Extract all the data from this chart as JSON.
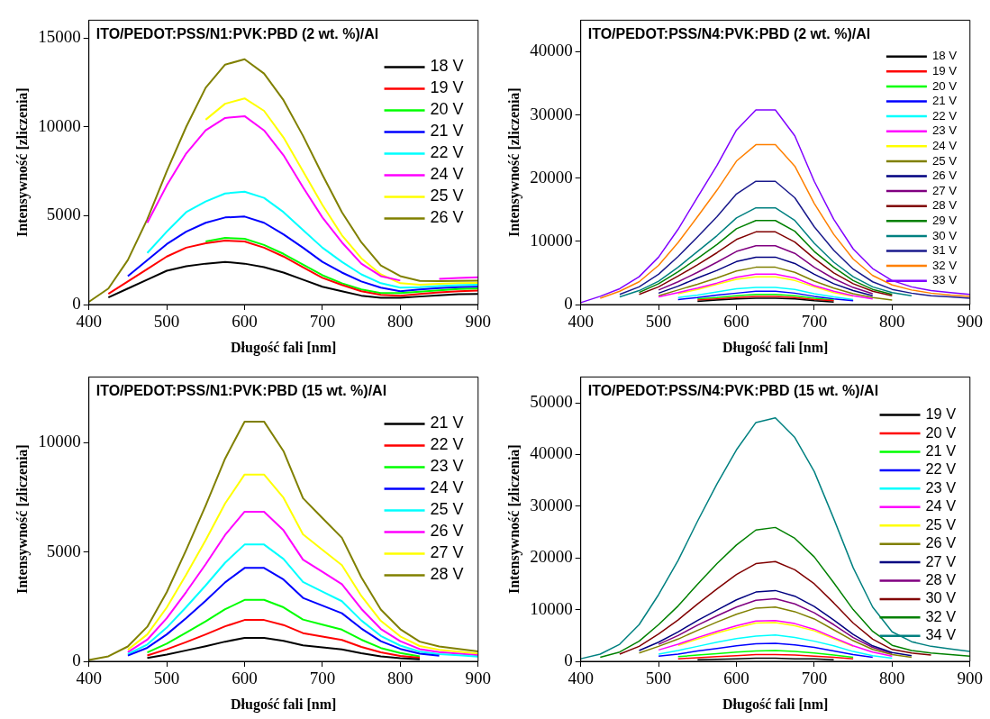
{
  "chart_data": [
    {
      "type": "line",
      "title": "ITO/PEDOT:PSS/N1:PVK:PBD (2 wt. %)/Al",
      "xlabel": "Długość fali [nm]",
      "ylabel": "Intensywność [zliczenia]",
      "xlim": [
        400,
        900
      ],
      "xticks": [
        400,
        500,
        600,
        700,
        800,
        900
      ],
      "ylim": [
        0,
        16000
      ],
      "yticks": [
        0,
        5000,
        10000,
        15000
      ],
      "grid": false,
      "legend": "top right",
      "marker": "none",
      "line_style": "solid",
      "x": [
        400,
        425,
        450,
        475,
        500,
        525,
        550,
        575,
        600,
        625,
        650,
        675,
        700,
        725,
        750,
        775,
        800,
        825,
        850,
        875,
        900
      ],
      "series": [
        {
          "name": "18 V",
          "color": "#000000",
          "values": [
            null,
            400,
            900,
            1400,
            1900,
            2150,
            2300,
            2400,
            2300,
            2100,
            1800,
            1400,
            1000,
            750,
            500,
            380,
            380,
            450,
            520,
            580,
            600
          ]
        },
        {
          "name": "19 V",
          "color": "#ff0000",
          "values": [
            null,
            600,
            1300,
            2000,
            2700,
            3200,
            3450,
            3600,
            3550,
            3200,
            2700,
            2100,
            1500,
            1100,
            750,
            550,
            500,
            600,
            680,
            750,
            780
          ]
        },
        {
          "name": "20 V",
          "color": "#00ff00",
          "values": [
            null,
            null,
            null,
            null,
            null,
            null,
            3550,
            3750,
            3700,
            3350,
            2850,
            2250,
            1650,
            1200,
            850,
            650,
            650,
            720,
            800,
            870,
            900
          ]
        },
        {
          "name": "21 V",
          "color": "#0000ff",
          "values": [
            null,
            null,
            1600,
            2500,
            3400,
            4100,
            4600,
            4900,
            4950,
            4600,
            3950,
            3200,
            2400,
            1800,
            1300,
            950,
            750,
            850,
            920,
            980,
            1000
          ]
        },
        {
          "name": "22 V",
          "color": "#00ffff",
          "values": [
            null,
            null,
            null,
            2900,
            4100,
            5200,
            5800,
            6250,
            6350,
            6000,
            5200,
            4200,
            3200,
            2400,
            1700,
            1200,
            950,
            980,
            1040,
            1090,
            1120
          ]
        },
        {
          "name": "24 V",
          "color": "#ff00ff",
          "values": [
            null,
            null,
            null,
            4600,
            6700,
            8500,
            9800,
            10500,
            10600,
            9800,
            8400,
            6600,
            4900,
            3500,
            2300,
            1600,
            1350,
            null,
            1450,
            1500,
            1530
          ]
        },
        {
          "name": "25 V",
          "color": "#ffff00",
          "values": [
            null,
            null,
            null,
            null,
            null,
            null,
            10400,
            11300,
            11600,
            10900,
            9400,
            7500,
            5600,
            3900,
            2600,
            1700,
            1200,
            1120,
            1160,
            1200,
            1220
          ]
        },
        {
          "name": "26 V",
          "color": "#808000",
          "values": [
            150,
            900,
            2500,
            4800,
            7500,
            10000,
            12200,
            13500,
            13800,
            13000,
            11500,
            9500,
            7300,
            5200,
            3500,
            2200,
            1600,
            1330,
            1320,
            1330,
            1340
          ]
        }
      ]
    },
    {
      "type": "line",
      "title": "ITO/PEDOT:PSS/N4:PVK:PBD (2 wt. %)/Al",
      "xlabel": "Długość fali [nm]",
      "ylabel": "Intensywność [zliczenia]",
      "xlim": [
        400,
        900
      ],
      "xticks": [
        400,
        500,
        600,
        700,
        800,
        900
      ],
      "ylim": [
        0,
        45000
      ],
      "yticks": [
        0,
        10000,
        20000,
        30000,
        40000
      ],
      "grid": false,
      "legend": "right",
      "marker": "none",
      "line_style": "solid",
      "x": [
        400,
        425,
        450,
        475,
        500,
        525,
        550,
        575,
        600,
        625,
        650,
        675,
        700,
        725,
        750,
        775,
        800,
        825,
        850,
        875,
        900
      ],
      "series": [
        {
          "name": "18 V",
          "color": "#000000",
          "values": [
            null,
            null,
            null,
            null,
            null,
            null,
            500,
            700,
            900,
            1000,
            1000,
            900,
            600,
            400,
            null,
            null,
            null,
            null,
            null,
            null,
            null
          ]
        },
        {
          "name": "19 V",
          "color": "#ff0000",
          "values": [
            null,
            null,
            null,
            null,
            null,
            null,
            700,
            900,
            1100,
            1300,
            1300,
            1100,
            800,
            600,
            null,
            null,
            null,
            null,
            null,
            null,
            null
          ]
        },
        {
          "name": "20 V",
          "color": "#00ff00",
          "values": [
            null,
            null,
            null,
            null,
            null,
            null,
            900,
            1100,
            1400,
            1600,
            1600,
            1400,
            1000,
            700,
            null,
            null,
            null,
            null,
            null,
            null,
            null
          ]
        },
        {
          "name": "21 V",
          "color": "#0000ff",
          "values": [
            null,
            null,
            null,
            null,
            null,
            800,
            1100,
            1500,
            1800,
            2100,
            2100,
            1800,
            1300,
            900,
            600,
            null,
            null,
            null,
            null,
            null,
            null
          ]
        },
        {
          "name": "22 V",
          "color": "#00ffff",
          "values": [
            null,
            null,
            null,
            null,
            null,
            1100,
            1500,
            2000,
            2500,
            2700,
            2700,
            2400,
            1700,
            1200,
            800,
            null,
            null,
            null,
            null,
            null,
            null
          ]
        },
        {
          "name": "23 V",
          "color": "#ff00ff",
          "values": [
            null,
            null,
            null,
            null,
            1200,
            1900,
            2600,
            3400,
            4300,
            4800,
            4800,
            4200,
            3000,
            2100,
            1400,
            900,
            null,
            null,
            null,
            null,
            null
          ]
        },
        {
          "name": "24 V",
          "color": "#ffff00",
          "values": [
            null,
            null,
            null,
            null,
            null,
            1700,
            2400,
            3200,
            4000,
            4400,
            4400,
            3800,
            2800,
            1900,
            1300,
            null,
            null,
            null,
            null,
            null,
            null
          ]
        },
        {
          "name": "25 V",
          "color": "#808000",
          "values": [
            null,
            null,
            null,
            null,
            1400,
            2300,
            3200,
            4200,
            5300,
            5900,
            5900,
            5100,
            3700,
            2600,
            1700,
            1100,
            700,
            null,
            null,
            null,
            null
          ]
        },
        {
          "name": "26 V",
          "color": "#000080",
          "values": [
            null,
            null,
            null,
            null,
            1800,
            2900,
            4200,
            5400,
            6800,
            7500,
            7500,
            6500,
            4800,
            3300,
            2200,
            1400,
            null,
            null,
            null,
            null,
            null
          ]
        },
        {
          "name": "27 V",
          "color": "#800080",
          "values": [
            null,
            null,
            null,
            null,
            2300,
            3600,
            5100,
            6700,
            8400,
            9300,
            9300,
            8100,
            5900,
            4100,
            2700,
            1700,
            null,
            null,
            null,
            null,
            null
          ]
        },
        {
          "name": "28 V",
          "color": "#800000",
          "values": [
            null,
            null,
            null,
            1600,
            2800,
            4500,
            6300,
            8200,
            10300,
            11500,
            11500,
            9900,
            7300,
            5000,
            3300,
            2100,
            1400,
            null,
            null,
            null,
            null
          ]
        },
        {
          "name": "29 V",
          "color": "#008000",
          "values": [
            null,
            null,
            null,
            1900,
            3300,
            5200,
            7300,
            9500,
            12000,
            13300,
            13300,
            11600,
            8400,
            5900,
            3800,
            2400,
            1600,
            null,
            null,
            null,
            null
          ]
        },
        {
          "name": "30 V",
          "color": "#008080",
          "values": [
            null,
            null,
            1200,
            2200,
            3700,
            5900,
            8400,
            10900,
            13700,
            15300,
            15300,
            13300,
            9700,
            6700,
            4400,
            2800,
            1900,
            1400,
            null,
            null,
            null
          ]
        },
        {
          "name": "31 V",
          "color": "#1a1a8c",
          "values": [
            null,
            null,
            1600,
            2800,
            4800,
            7600,
            10700,
            13900,
            17500,
            19500,
            19500,
            16900,
            12300,
            8600,
            5600,
            3600,
            2400,
            1800,
            1400,
            1200,
            1000
          ]
        },
        {
          "name": "32 V",
          "color": "#ff8000",
          "values": [
            null,
            1000,
            2100,
            3600,
            6200,
            9800,
            13900,
            18100,
            22700,
            25300,
            25300,
            21900,
            16000,
            11100,
            7200,
            4600,
            3100,
            2300,
            1800,
            1500,
            1300
          ]
        },
        {
          "name": "33 V",
          "color": "#8000ff",
          "values": [
            300,
            1300,
            2500,
            4400,
            7500,
            11900,
            17000,
            22000,
            27600,
            30800,
            30800,
            26700,
            19500,
            13500,
            8800,
            5700,
            3800,
            2800,
            2200,
            1900,
            1600
          ]
        }
      ]
    },
    {
      "type": "line",
      "title": "ITO/PEDOT:PSS/N1:PVK:PBD (15 wt. %)/Al",
      "xlabel": "Długość fali [nm]",
      "ylabel": "Intensywność [zliczenia]",
      "xlim": [
        400,
        900
      ],
      "xticks": [
        400,
        500,
        600,
        700,
        800,
        900
      ],
      "ylim": [
        0,
        13000
      ],
      "yticks": [
        0,
        5000,
        10000
      ],
      "grid": false,
      "legend": "top right",
      "marker": "none",
      "line_style": "solid",
      "x": [
        400,
        425,
        450,
        475,
        500,
        525,
        550,
        575,
        600,
        625,
        650,
        675,
        700,
        725,
        750,
        775,
        800,
        825,
        850,
        875,
        900
      ],
      "series": [
        {
          "name": "21 V",
          "color": "#000000",
          "values": [
            null,
            null,
            null,
            150,
            310,
            500,
            690,
            900,
            1070,
            1070,
            940,
            730,
            640,
            550,
            370,
            230,
            140,
            90,
            null,
            null,
            null
          ]
        },
        {
          "name": "22 V",
          "color": "#ff0000",
          "values": [
            null,
            null,
            null,
            270,
            550,
            880,
            1230,
            1600,
            1890,
            1890,
            1660,
            1290,
            1130,
            980,
            660,
            410,
            250,
            160,
            null,
            null,
            null
          ]
        },
        {
          "name": "23 V",
          "color": "#00ff00",
          "values": [
            null,
            null,
            null,
            410,
            810,
            1310,
            1830,
            2380,
            2810,
            2810,
            2470,
            1910,
            1680,
            1450,
            990,
            610,
            380,
            230,
            null,
            null,
            null
          ]
        },
        {
          "name": "24 V",
          "color": "#0000ff",
          "values": [
            null,
            null,
            260,
            620,
            1230,
            1980,
            2770,
            3610,
            4270,
            4270,
            3740,
            2900,
            2550,
            2200,
            1500,
            920,
            570,
            350,
            260,
            null,
            null
          ]
        },
        {
          "name": "25 V",
          "color": "#00ffff",
          "values": [
            null,
            null,
            330,
            770,
            1540,
            2480,
            3470,
            4510,
            5340,
            5340,
            4680,
            3630,
            3190,
            2750,
            1870,
            1160,
            720,
            440,
            330,
            280,
            220
          ]
        },
        {
          "name": "26 V",
          "color": "#ff00ff",
          "values": [
            null,
            null,
            420,
            990,
            1970,
            3170,
            4440,
            5780,
            6840,
            6840,
            5990,
            4650,
            4090,
            3530,
            2400,
            1480,
            920,
            560,
            420,
            350,
            280
          ]
        },
        {
          "name": "27 V",
          "color": "#ffff00",
          "values": [
            null,
            null,
            530,
            1230,
            2460,
            3960,
            5540,
            7220,
            8540,
            8540,
            7480,
            5810,
            5100,
            4400,
            2990,
            1850,
            1140,
            700,
            530,
            440,
            350
          ]
        },
        {
          "name": "28 V",
          "color": "#808000",
          "values": [
            60,
            230,
            680,
            1580,
            3160,
            5090,
            7120,
            9270,
            10960,
            10960,
            9610,
            7460,
            6550,
            5650,
            3840,
            2370,
            1470,
            900,
            680,
            570,
            450
          ]
        }
      ]
    },
    {
      "type": "line",
      "title": "ITO/PEDOT:PSS/N4:PVK:PBD (15 wt. %)/Al",
      "xlabel": "Długość fali [nm]",
      "ylabel": "Intensywność [zliczenia]",
      "xlim": [
        400,
        900
      ],
      "xticks": [
        400,
        500,
        600,
        700,
        800,
        900
      ],
      "ylim": [
        0,
        55000
      ],
      "yticks": [
        0,
        10000,
        20000,
        30000,
        40000,
        50000
      ],
      "grid": false,
      "legend": "right",
      "marker": "none",
      "line_style": "solid",
      "x": [
        400,
        425,
        450,
        475,
        500,
        525,
        550,
        575,
        600,
        625,
        650,
        675,
        700,
        725,
        750,
        775,
        800,
        825,
        850,
        875,
        900
      ],
      "series": [
        {
          "name": "19 V",
          "color": "#000000",
          "values": [
            null,
            null,
            null,
            null,
            null,
            null,
            300,
            400,
            500,
            600,
            600,
            500,
            500,
            300,
            null,
            null,
            null,
            null,
            null,
            null,
            null
          ]
        },
        {
          "name": "20 V",
          "color": "#ff0000",
          "values": [
            null,
            null,
            null,
            null,
            null,
            500,
            700,
            900,
            1100,
            1300,
            1300,
            1200,
            1000,
            800,
            500,
            null,
            null,
            null,
            null,
            null,
            null
          ]
        },
        {
          "name": "21 V",
          "color": "#00ff00",
          "values": [
            null,
            null,
            null,
            null,
            null,
            900,
            1200,
            1500,
            1800,
            2000,
            2100,
            1900,
            1600,
            1200,
            800,
            null,
            null,
            null,
            null,
            null,
            null
          ]
        },
        {
          "name": "22 V",
          "color": "#0000ff",
          "values": [
            null,
            null,
            null,
            null,
            1000,
            1400,
            2000,
            2500,
            3000,
            3400,
            3500,
            3200,
            2700,
            2000,
            1300,
            800,
            null,
            null,
            null,
            null,
            null
          ]
        },
        {
          "name": "23 V",
          "color": "#00ffff",
          "values": [
            null,
            null,
            null,
            null,
            1400,
            2100,
            2900,
            3700,
            4400,
            4900,
            5100,
            4600,
            3900,
            3000,
            1900,
            1100,
            600,
            null,
            null,
            null,
            null
          ]
        },
        {
          "name": "24 V",
          "color": "#ff00ff",
          "values": [
            null,
            null,
            null,
            null,
            2200,
            3300,
            4600,
            5800,
            6900,
            7800,
            7900,
            7300,
            6200,
            4600,
            3000,
            1800,
            1000,
            null,
            null,
            null,
            null
          ]
        },
        {
          "name": "25 V",
          "color": "#ffff00",
          "values": [
            null,
            null,
            null,
            null,
            null,
            3100,
            4300,
            5500,
            6500,
            7400,
            7500,
            6900,
            5900,
            4400,
            2900,
            null,
            null,
            null,
            null,
            null,
            null
          ]
        },
        {
          "name": "26 V",
          "color": "#808000",
          "values": [
            null,
            null,
            null,
            1600,
            2900,
            4300,
            6000,
            7600,
            9100,
            10300,
            10500,
            9600,
            8200,
            6100,
            4000,
            2300,
            1300,
            800,
            null,
            null,
            null
          ]
        },
        {
          "name": "27 V",
          "color": "#000080",
          "values": [
            null,
            null,
            null,
            2100,
            3700,
            5700,
            7900,
            9900,
            11900,
            13400,
            13700,
            12600,
            10600,
            8000,
            5200,
            3000,
            1700,
            1100,
            null,
            null,
            null
          ]
        },
        {
          "name": "28 V",
          "color": "#800080",
          "values": [
            null,
            null,
            null,
            null,
            3300,
            5000,
            7000,
            8800,
            10500,
            11800,
            12100,
            11100,
            9400,
            7100,
            4600,
            2700,
            1500,
            null,
            null,
            null,
            null
          ]
        },
        {
          "name": "30 V",
          "color": "#800000",
          "values": [
            null,
            null,
            1400,
            2900,
            5300,
            8000,
            11100,
            14000,
            16800,
            18900,
            19300,
            17700,
            15000,
            11300,
            7400,
            4300,
            2300,
            1600,
            1200,
            null,
            null
          ]
        },
        {
          "name": "32 V",
          "color": "#008000",
          "values": [
            null,
            800,
            1800,
            3900,
            7100,
            10700,
            14900,
            18900,
            22500,
            25400,
            25900,
            23800,
            20200,
            15200,
            10000,
            5800,
            3100,
            2100,
            1600,
            1300,
            1000
          ]
        },
        {
          "name": "34 V",
          "color": "#008080",
          "values": [
            500,
            1400,
            3300,
            7100,
            12900,
            19500,
            27100,
            34300,
            40900,
            46200,
            47100,
            43300,
            36700,
            27600,
            18100,
            10500,
            5700,
            3800,
            2900,
            2400,
            1900
          ]
        }
      ]
    }
  ]
}
